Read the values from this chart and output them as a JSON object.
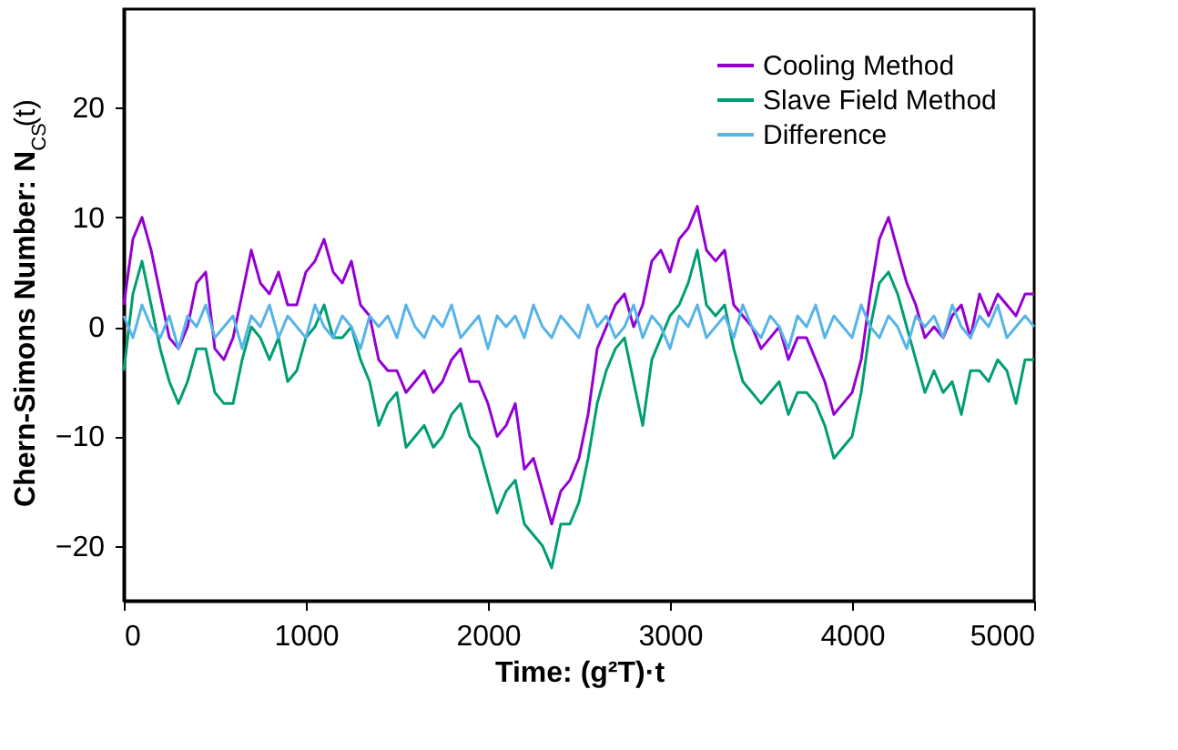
{
  "chart_data": {
    "type": "line",
    "xlabel": "Time: (g²T)·t",
    "ylabel": "Chern-Simons Number: N$_{CS}$(t)",
    "x": [
      0,
      50,
      100,
      150,
      200,
      250,
      300,
      350,
      400,
      450,
      500,
      550,
      600,
      650,
      700,
      750,
      800,
      850,
      900,
      950,
      1000,
      1050,
      1100,
      1150,
      1200,
      1250,
      1300,
      1350,
      1400,
      1450,
      1500,
      1550,
      1600,
      1650,
      1700,
      1750,
      1800,
      1850,
      1900,
      1950,
      2000,
      2050,
      2100,
      2150,
      2200,
      2250,
      2300,
      2350,
      2400,
      2450,
      2500,
      2550,
      2600,
      2650,
      2700,
      2750,
      2800,
      2850,
      2900,
      2950,
      3000,
      3050,
      3100,
      3150,
      3200,
      3250,
      3300,
      3350,
      3400,
      3450,
      3500,
      3550,
      3600,
      3650,
      3700,
      3750,
      3800,
      3850,
      3900,
      3950,
      4000,
      4050,
      4100,
      4150,
      4200,
      4250,
      4300,
      4350,
      4400,
      4450,
      4500,
      4550,
      4600,
      4650,
      4700,
      4750,
      4800,
      4850,
      4900,
      4950,
      5000
    ],
    "series": [
      {
        "name": "Cooling Method",
        "color": "#9400d3",
        "values": [
          2,
          8,
          10,
          7,
          3,
          -1,
          -2,
          0,
          4,
          5,
          -2,
          -3,
          -1,
          3,
          7,
          4,
          3,
          5,
          2,
          2,
          5,
          6,
          8,
          5,
          4,
          6,
          2,
          1,
          -3,
          -4,
          -4,
          -6,
          -5,
          -4,
          -6,
          -5,
          -3,
          -2,
          -5,
          -5,
          -7,
          -10,
          -9,
          -7,
          -13,
          -12,
          -15,
          -18,
          -15,
          -14,
          -12,
          -8,
          -2,
          0,
          2,
          3,
          0,
          2,
          6,
          7,
          5,
          8,
          9,
          11,
          7,
          6,
          7,
          2,
          1,
          0,
          -2,
          -1,
          0,
          -3,
          -1,
          -1,
          -3,
          -5,
          -8,
          -7,
          -6,
          -3,
          3,
          8,
          10,
          7,
          4,
          2,
          -1,
          0,
          -1,
          1,
          2,
          -1,
          3,
          1,
          3,
          2,
          1,
          3,
          3
        ]
      },
      {
        "name": "Slave Field Method",
        "color": "#009e73",
        "values": [
          -4,
          3,
          6,
          2,
          -2,
          -5,
          -7,
          -5,
          -2,
          -2,
          -6,
          -7,
          -7,
          -3,
          0,
          -1,
          -3,
          -1,
          -5,
          -4,
          -1,
          0,
          2,
          -1,
          -1,
          0,
          -3,
          -5,
          -9,
          -7,
          -6,
          -11,
          -10,
          -9,
          -11,
          -10,
          -8,
          -7,
          -10,
          -11,
          -14,
          -17,
          -15,
          -14,
          -18,
          -19,
          -20,
          -22,
          -18,
          -18,
          -16,
          -12,
          -7,
          -4,
          -2,
          -1,
          -5,
          -9,
          -3,
          -1,
          1,
          2,
          4,
          7,
          2,
          1,
          2,
          -2,
          -5,
          -6,
          -7,
          -6,
          -5,
          -8,
          -6,
          -6,
          -7,
          -9,
          -12,
          -11,
          -10,
          -6,
          0,
          4,
          5,
          3,
          0,
          -3,
          -6,
          -4,
          -6,
          -5,
          -8,
          -4,
          -4,
          -5,
          -3,
          -4,
          -7,
          -3,
          -3
        ]
      },
      {
        "name": "Difference",
        "color": "#56b4e9",
        "values": [
          1,
          -1,
          2,
          0,
          -1,
          1,
          -2,
          1,
          0,
          2,
          -1,
          0,
          1,
          -2,
          1,
          0,
          2,
          -1,
          1,
          0,
          -1,
          2,
          0,
          -1,
          1,
          0,
          -2,
          1,
          0,
          1,
          -1,
          2,
          0,
          -1,
          1,
          0,
          2,
          -1,
          0,
          1,
          -2,
          1,
          0,
          1,
          -1,
          2,
          0,
          -1,
          1,
          0,
          -1,
          2,
          0,
          1,
          -1,
          0,
          2,
          -1,
          1,
          0,
          -2,
          1,
          0,
          2,
          -1,
          0,
          1,
          -1,
          2,
          0,
          -1,
          1,
          0,
          -2,
          1,
          0,
          2,
          -1,
          1,
          0,
          -1,
          2,
          0,
          -1,
          1,
          0,
          -2,
          1,
          0,
          1,
          -1,
          2,
          0,
          -1,
          1,
          0,
          2,
          -1,
          0,
          1,
          0
        ]
      }
    ],
    "xlim": [
      0,
      5000
    ],
    "xticks": [
      0,
      1000,
      2000,
      3000,
      4000,
      5000
    ],
    "ylim": [
      -25,
      29
    ],
    "yticks": [
      -20,
      -10,
      0,
      10,
      20
    ],
    "grid": false,
    "legend": "top right",
    "marker": "none",
    "line_style": "solid"
  }
}
